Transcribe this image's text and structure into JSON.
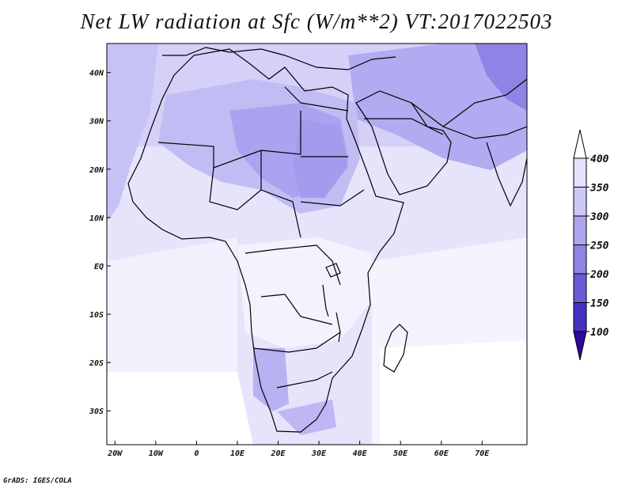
{
  "title": "Net LW radiation at Sfc (W/m**2) VT:2017022503",
  "credit": "GrADS: IGES/COLA",
  "map": {
    "lon_range": [
      -22,
      81
    ],
    "lat_range": [
      -37,
      46
    ],
    "x_ticks": [
      "20W",
      "10W",
      "0",
      "10E",
      "20E",
      "30E",
      "40E",
      "50E",
      "60E",
      "70E"
    ],
    "x_tick_values": [
      -20,
      -10,
      0,
      10,
      20,
      30,
      40,
      50,
      60,
      70
    ],
    "y_ticks": [
      "40N",
      "30N",
      "20N",
      "10N",
      "EQ",
      "10S",
      "20S",
      "30S"
    ],
    "y_tick_values": [
      40,
      30,
      20,
      10,
      0,
      -10,
      -20,
      -30
    ]
  },
  "colorbar": {
    "levels": [
      "400",
      "350",
      "300",
      "250",
      "200",
      "150",
      "100"
    ],
    "colors": [
      "#ffffff",
      "#e3e1fb",
      "#cdc9f6",
      "#ada5ef",
      "#8f84e5",
      "#6a5bd6",
      "#4332c0",
      "#2a0aa0"
    ]
  }
}
